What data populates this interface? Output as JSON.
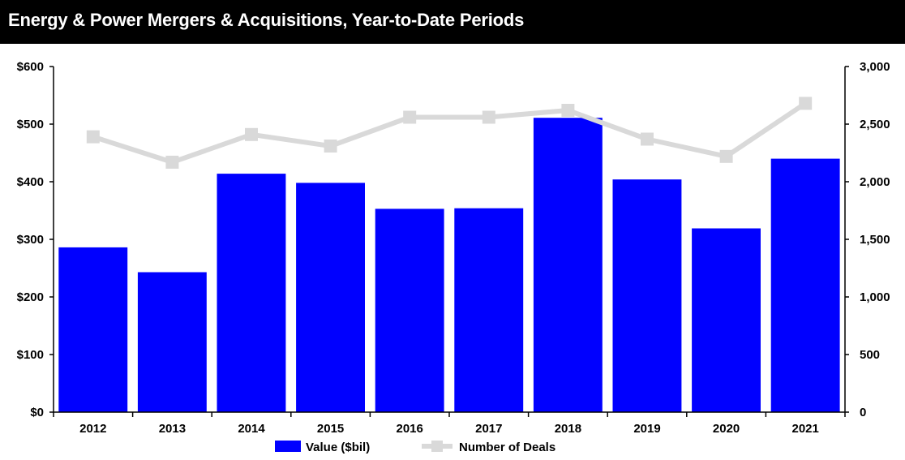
{
  "title": "Energy & Power Mergers & Acquisitions, Year-to-Date Periods",
  "colors": {
    "bar": "#0000ff",
    "line": "#d9d9d9",
    "title_bg": "#000000",
    "title_text": "#ffffff",
    "axis": "#000000"
  },
  "chart_data": {
    "type": "bar",
    "categories": [
      "2012",
      "2013",
      "2014",
      "2015",
      "2016",
      "2017",
      "2018",
      "2019",
      "2020",
      "2021"
    ],
    "series": [
      {
        "name": "Value ($bil)",
        "type": "bar",
        "axis": "left",
        "values": [
          286,
          243,
          414,
          398,
          353,
          354,
          511,
          404,
          319,
          440
        ]
      },
      {
        "name": "Number of Deals",
        "type": "line",
        "axis": "right",
        "values": [
          2390,
          2170,
          2410,
          2310,
          2560,
          2560,
          2620,
          2370,
          2220,
          2680
        ]
      }
    ],
    "y_left": {
      "lim": [
        0,
        600
      ],
      "ticks": [
        0,
        100,
        200,
        300,
        400,
        500,
        600
      ],
      "tick_labels": [
        "$0",
        "$100",
        "$200",
        "$300",
        "$400",
        "$500",
        "$600"
      ]
    },
    "y_right": {
      "lim": [
        0,
        3000
      ],
      "ticks": [
        0,
        500,
        1000,
        1500,
        2000,
        2500,
        3000
      ],
      "tick_labels": [
        "0",
        "500",
        "1,000",
        "1,500",
        "2,000",
        "2,500",
        "3,000"
      ]
    },
    "grid": false,
    "legend": "bottom-center"
  }
}
